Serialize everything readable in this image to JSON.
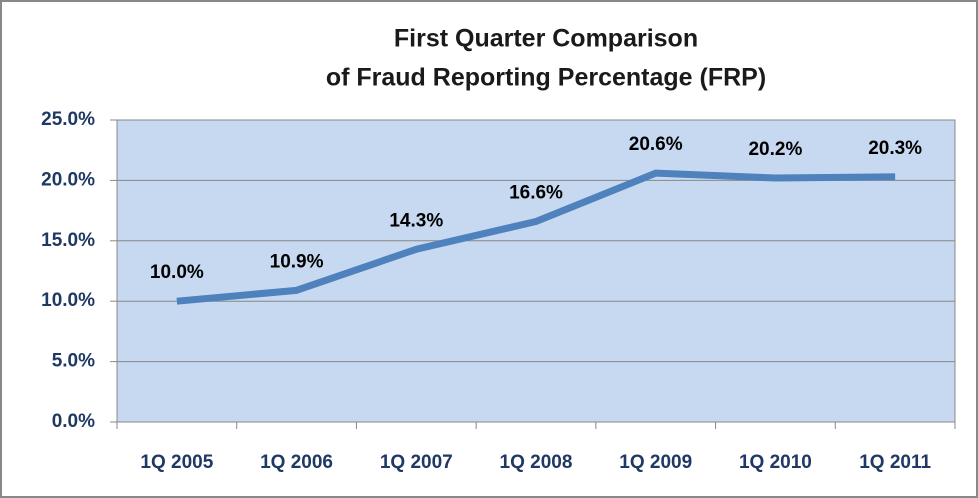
{
  "chart_data": {
    "type": "line",
    "title": [
      "First Quarter Comparison",
      "of Fraud Reporting Percentage (FRP)"
    ],
    "categories": [
      "1Q 2005",
      "1Q 2006",
      "1Q 2007",
      "1Q 2008",
      "1Q 2009",
      "1Q 2010",
      "1Q 2011"
    ],
    "values": [
      10.0,
      10.9,
      14.3,
      16.6,
      20.6,
      20.2,
      20.3
    ],
    "value_labels": [
      "10.0%",
      "10.9%",
      "14.3%",
      "16.6%",
      "20.6%",
      "20.2%",
      "20.3%"
    ],
    "color": "#4f81bd",
    "ylim": [
      0,
      25
    ],
    "yticks": [
      {
        "value": 0,
        "label": "0.0%"
      },
      {
        "value": 5,
        "label": "5.0%"
      },
      {
        "value": 10,
        "label": "10.0%"
      },
      {
        "value": 15,
        "label": "15.0%"
      },
      {
        "value": 20,
        "label": "20.0%"
      },
      {
        "value": 25,
        "label": "25.0%"
      }
    ],
    "grid": true
  }
}
